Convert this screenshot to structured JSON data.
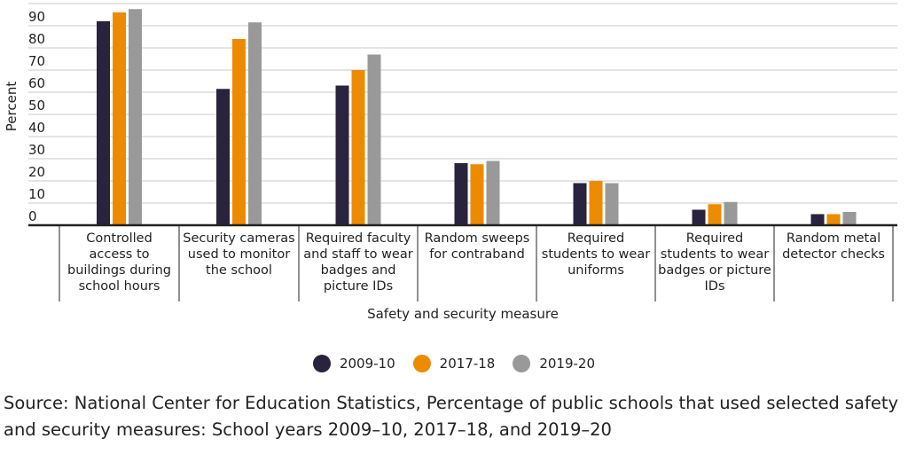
{
  "chart_data": {
    "type": "bar",
    "ylabel": "Percent",
    "xlabel": "Safety and security measure",
    "ylim": [
      0,
      100
    ],
    "yticks": [
      0,
      10,
      20,
      30,
      40,
      50,
      60,
      70,
      80,
      90
    ],
    "grid": true,
    "legend_position": "bottom",
    "categories": [
      "Controlled access to buildings during school hours",
      "Security cameras used to monitor the school",
      "Required faculty and staff to wear badges and picture IDs",
      "Random sweeps for contraband",
      "Required students to wear uniforms",
      "Required students to wear badges or picture IDs",
      "Random metal detector checks"
    ],
    "category_lines": [
      [
        "Controlled",
        "access to",
        "buildings during",
        "school hours"
      ],
      [
        "Security cameras",
        "used to monitor",
        "the school"
      ],
      [
        "Required faculty",
        "and staff to wear",
        "badges and",
        "picture IDs"
      ],
      [
        "Random sweeps",
        "for contraband"
      ],
      [
        "Required",
        "students to wear",
        "uniforms"
      ],
      [
        "Required",
        "students to wear",
        "badges or picture",
        "IDs"
      ],
      [
        "Random metal",
        "detector checks"
      ]
    ],
    "series": [
      {
        "name": "2009-10",
        "color": "#29233d",
        "values": [
          92,
          61.5,
          63,
          28,
          19,
          7,
          5
        ]
      },
      {
        "name": "2017-18",
        "color": "#ec8b00",
        "values": [
          96,
          84,
          70,
          27.5,
          20,
          9.5,
          5
        ]
      },
      {
        "name": "2019-20",
        "color": "#999999",
        "values": [
          97.5,
          91.5,
          77,
          29,
          19,
          10.5,
          6
        ]
      }
    ]
  },
  "source": "Source: National Center for Education Statistics, Percentage of public schools that used selected safety and security measures: School years 2009–10, 2017–18, and 2019–20"
}
